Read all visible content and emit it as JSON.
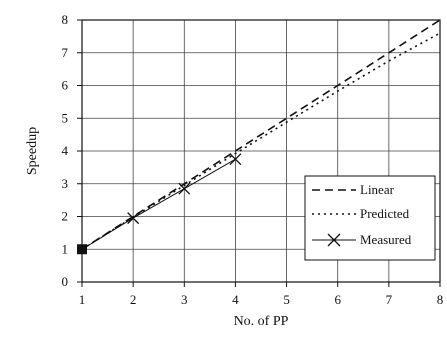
{
  "chart_data": {
    "type": "line",
    "title": "",
    "xlabel": "No. of PP",
    "ylabel": "Speedup",
    "xlim": [
      1,
      8
    ],
    "ylim": [
      0,
      8
    ],
    "x_ticks": [
      "1",
      "2",
      "3",
      "4",
      "5",
      "6",
      "7",
      "8"
    ],
    "y_ticks": [
      "0",
      "1",
      "2",
      "3",
      "4",
      "5",
      "6",
      "7",
      "8"
    ],
    "grid": true,
    "legend_position": "bottom-right",
    "series": [
      {
        "name": "Linear",
        "style": "dashed",
        "color": "#111111",
        "x": [
          1,
          2,
          3,
          4,
          5,
          6,
          7,
          8
        ],
        "y": [
          1,
          2,
          3,
          4,
          5,
          6,
          7,
          8
        ]
      },
      {
        "name": "Predicted",
        "style": "dotted",
        "color": "#111111",
        "x": [
          1,
          2,
          3,
          4,
          5,
          6,
          7,
          8
        ],
        "y": [
          1,
          1.98,
          2.95,
          3.92,
          4.88,
          5.83,
          6.75,
          7.6
        ]
      },
      {
        "name": "Measured",
        "style": "solid-x-markers",
        "color": "#111111",
        "x": [
          1,
          2,
          3,
          4
        ],
        "y": [
          1,
          1.95,
          2.85,
          3.75
        ]
      }
    ],
    "start_marker": {
      "x": 1,
      "y": 1,
      "shape": "filled-square"
    }
  }
}
